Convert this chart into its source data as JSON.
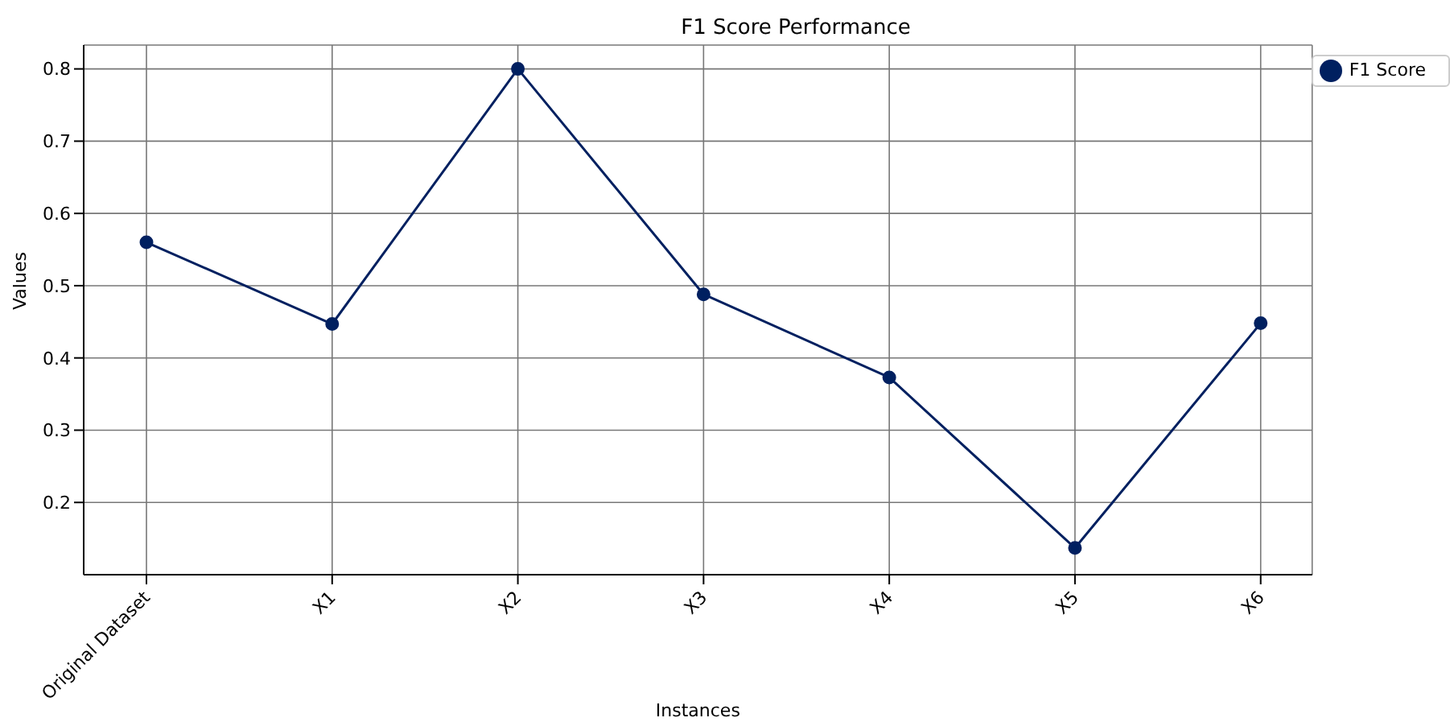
{
  "chart_data": {
    "type": "line",
    "title": "F1 Score Performance",
    "xlabel": "Instances",
    "ylabel": "Values",
    "categories": [
      "Original Dataset",
      "X1",
      "X2",
      "X3",
      "X4",
      "X5",
      "X6"
    ],
    "series": [
      {
        "name": "F1 Score",
        "color": "#002060",
        "values": [
          0.56,
          0.447,
          0.8,
          0.488,
          0.373,
          0.137,
          0.448
        ]
      }
    ],
    "ylim": [
      0.1,
      0.833
    ],
    "yticks": [
      0.2,
      0.3,
      0.4,
      0.5,
      0.6,
      0.7,
      0.8
    ],
    "grid": true,
    "legend": "top right",
    "marker": "circle",
    "line_style": "solid"
  }
}
